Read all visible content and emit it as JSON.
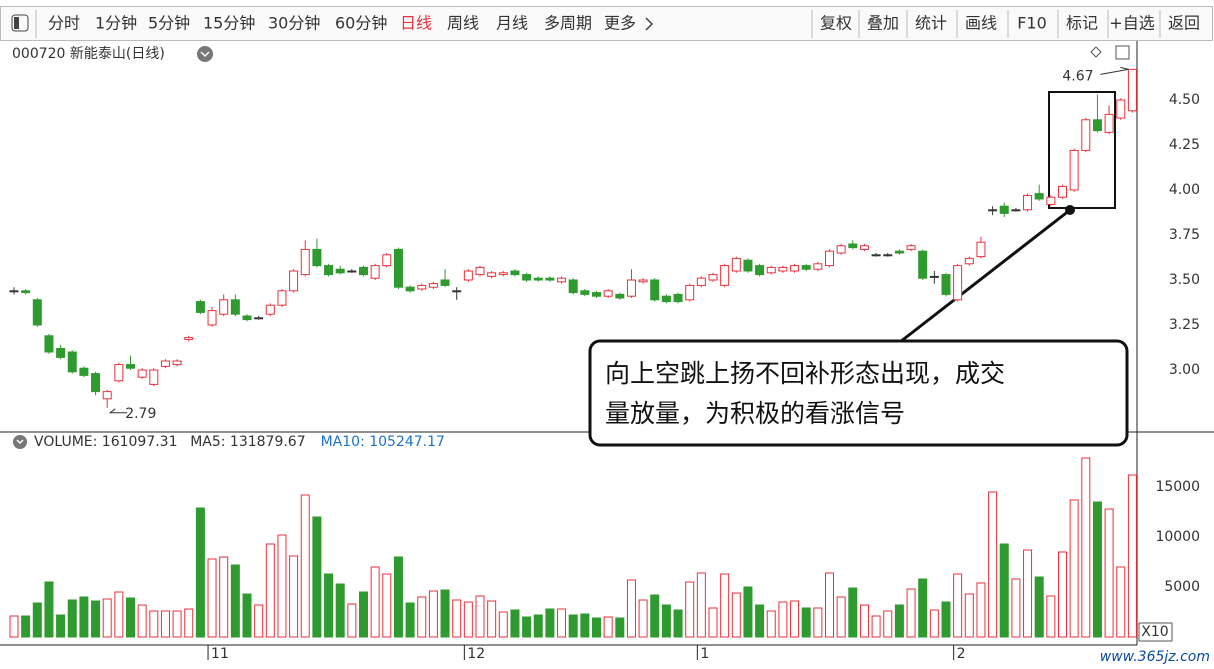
{
  "toolbar": {
    "left": [
      "分时",
      "1分钟",
      "5分钟",
      "15分钟",
      "30分钟",
      "60分钟",
      "日线",
      "周线",
      "月线",
      "多周期",
      "更多"
    ],
    "active": "日线",
    "right": [
      "复权",
      "叠加",
      "统计",
      "画线",
      "F10",
      "标记",
      "+自选",
      "返回"
    ],
    "zoom": "X10",
    "watermark": "www.365jz.com"
  },
  "chart_data": [
    {
      "type": "candlestick",
      "title": "000720 新能泰山(日线)",
      "up_color": "#e8323c",
      "down_color": "#2f9a2f",
      "flat_color": "#333333",
      "ylim": [
        2.7,
        4.8
      ],
      "yticks": [
        {
          "value": 3,
          "label": "3.00"
        },
        {
          "value": 3.25,
          "label": "3.25"
        },
        {
          "value": 3.5,
          "label": "3.50"
        },
        {
          "value": 3.75,
          "label": "3.75"
        },
        {
          "value": 4,
          "label": "4.00"
        },
        {
          "value": 4.25,
          "label": "4.25"
        },
        {
          "value": 4.5,
          "label": "4.50"
        }
      ],
      "grid": true,
      "annotations": [
        "向上空跳上扬不回补形态出现，成交",
        "量放量，为积极的看涨信号"
      ],
      "categories": [
        null,
        null,
        null,
        null,
        null,
        null,
        null,
        null,
        null,
        null,
        null,
        null,
        null,
        null,
        null,
        null,
        null,
        "11",
        null,
        null,
        null,
        null,
        null,
        null,
        null,
        null,
        null,
        null,
        null,
        null,
        null,
        null,
        null,
        null,
        null,
        null,
        null,
        null,
        null,
        "12",
        null,
        null,
        null,
        null,
        null,
        null,
        null,
        null,
        null,
        null,
        null,
        null,
        null,
        null,
        null,
        null,
        null,
        null,
        null,
        "1",
        null,
        null,
        null,
        null,
        null,
        null,
        null,
        null,
        null,
        null,
        null,
        null,
        null,
        null,
        null,
        null,
        null,
        null,
        null,
        null,
        null,
        "2",
        null,
        null,
        null,
        null,
        null,
        null,
        null,
        null,
        null,
        null,
        null,
        null,
        null,
        null,
        null
      ],
      "open": [
        3.44,
        3.44,
        3.39,
        3.19,
        3.12,
        3.1,
        3.01,
        2.98,
        2.84,
        2.94,
        3.03,
        2.96,
        2.92,
        3.02,
        3.03,
        3.17,
        3.38,
        3.25,
        3.31,
        3.39,
        3.3,
        3.29,
        3.31,
        3.36,
        3.44,
        3.53,
        3.67,
        3.58,
        3.56,
        3.55,
        3.57,
        3.51,
        3.58,
        3.67,
        3.46,
        3.45,
        3.46,
        3.5,
        3.44,
        3.5,
        3.53,
        3.52,
        3.53,
        3.55,
        3.53,
        3.51,
        3.51,
        3.49,
        3.5,
        3.44,
        3.43,
        3.41,
        3.42,
        3.41,
        3.49,
        3.5,
        3.41,
        3.42,
        3.39,
        3.47,
        3.5,
        3.47,
        3.55,
        3.61,
        3.58,
        3.54,
        3.55,
        3.55,
        3.58,
        3.56,
        3.58,
        3.65,
        3.7,
        3.67,
        3.64,
        3.64,
        3.66,
        3.67,
        3.66,
        3.52,
        3.53,
        3.39,
        3.59,
        3.63,
        3.89,
        3.91,
        3.89,
        3.89,
        3.98,
        3.92,
        3.96,
        4.0,
        4.22,
        4.39,
        4.32,
        4.4,
        4.44
      ],
      "high": [
        3.46,
        3.45,
        3.4,
        3.2,
        3.14,
        3.11,
        3.02,
        2.99,
        2.89,
        3.04,
        3.08,
        3.01,
        3.01,
        3.06,
        3.06,
        3.19,
        3.39,
        3.35,
        3.42,
        3.42,
        3.31,
        3.3,
        3.37,
        3.45,
        3.56,
        3.72,
        3.73,
        3.59,
        3.58,
        3.56,
        3.58,
        3.59,
        3.65,
        3.68,
        3.47,
        3.48,
        3.49,
        3.56,
        3.46,
        3.56,
        3.58,
        3.55,
        3.55,
        3.56,
        3.54,
        3.52,
        3.52,
        3.52,
        3.51,
        3.45,
        3.44,
        3.45,
        3.43,
        3.56,
        3.51,
        3.51,
        3.42,
        3.43,
        3.48,
        3.52,
        3.54,
        3.59,
        3.63,
        3.62,
        3.59,
        3.58,
        3.58,
        3.59,
        3.59,
        3.6,
        3.67,
        3.7,
        3.72,
        3.7,
        3.65,
        3.65,
        3.67,
        3.7,
        3.67,
        3.55,
        3.54,
        3.59,
        3.63,
        3.74,
        3.91,
        3.93,
        3.9,
        3.98,
        4.03,
        3.97,
        4.03,
        4.23,
        4.4,
        4.53,
        4.47,
        4.51,
        4.67
      ],
      "low": [
        3.42,
        3.42,
        3.24,
        3.09,
        3.06,
        2.98,
        2.96,
        2.86,
        2.79,
        2.93,
        3.0,
        2.95,
        2.91,
        3.01,
        3.02,
        3.16,
        3.31,
        3.24,
        3.3,
        3.3,
        3.27,
        3.28,
        3.3,
        3.35,
        3.43,
        3.52,
        3.57,
        3.52,
        3.53,
        3.54,
        3.52,
        3.5,
        3.57,
        3.45,
        3.43,
        3.44,
        3.45,
        3.46,
        3.39,
        3.49,
        3.52,
        3.51,
        3.52,
        3.52,
        3.49,
        3.49,
        3.49,
        3.48,
        3.42,
        3.41,
        3.4,
        3.4,
        3.39,
        3.4,
        3.48,
        3.38,
        3.37,
        3.37,
        3.38,
        3.46,
        3.49,
        3.46,
        3.54,
        3.54,
        3.52,
        3.53,
        3.54,
        3.54,
        3.55,
        3.55,
        3.57,
        3.64,
        3.67,
        3.66,
        3.63,
        3.63,
        3.64,
        3.66,
        3.5,
        3.48,
        3.41,
        3.38,
        3.58,
        3.62,
        3.86,
        3.85,
        3.88,
        3.88,
        3.94,
        3.91,
        3.95,
        3.99,
        4.21,
        4.32,
        4.31,
        4.39,
        4.43
      ],
      "close": [
        3.44,
        3.43,
        3.25,
        3.1,
        3.07,
        2.99,
        2.97,
        2.88,
        2.88,
        3.03,
        3.01,
        3.0,
        3.0,
        3.05,
        3.05,
        3.18,
        3.32,
        3.33,
        3.39,
        3.31,
        3.28,
        3.29,
        3.36,
        3.44,
        3.55,
        3.67,
        3.58,
        3.53,
        3.54,
        3.55,
        3.53,
        3.58,
        3.64,
        3.46,
        3.44,
        3.47,
        3.48,
        3.47,
        3.44,
        3.55,
        3.57,
        3.54,
        3.54,
        3.53,
        3.5,
        3.5,
        3.5,
        3.51,
        3.43,
        3.42,
        3.41,
        3.44,
        3.4,
        3.5,
        3.5,
        3.39,
        3.38,
        3.38,
        3.47,
        3.51,
        3.53,
        3.58,
        3.62,
        3.55,
        3.53,
        3.57,
        3.57,
        3.58,
        3.56,
        3.59,
        3.66,
        3.69,
        3.68,
        3.69,
        3.64,
        3.64,
        3.65,
        3.69,
        3.51,
        3.52,
        3.42,
        3.58,
        3.62,
        3.71,
        3.89,
        3.87,
        3.89,
        3.97,
        3.95,
        3.96,
        4.02,
        4.22,
        4.39,
        4.33,
        4.42,
        4.5,
        4.67
      ]
    },
    {
      "type": "bar",
      "header": [
        "VOLUME: 161097.31",
        "MA5: 131879.67",
        "MA10: 105247.17"
      ],
      "header_colors": [
        "#333333",
        "#333333",
        "#1e73c8"
      ],
      "ylim": [
        0,
        18000
      ],
      "yticks": [
        5000,
        10000,
        15000
      ],
      "grid": true,
      "values": [
        2100,
        2100,
        3400,
        5500,
        2200,
        3700,
        4000,
        3600,
        3800,
        4500,
        3900,
        3200,
        2600,
        2600,
        2600,
        2800,
        12900,
        7800,
        8000,
        7200,
        4300,
        3200,
        9300,
        10200,
        8100,
        14200,
        12000,
        6300,
        5300,
        3300,
        4500,
        7000,
        6300,
        8000,
        3400,
        4000,
        4600,
        4700,
        3700,
        3500,
        4100,
        3600,
        2500,
        2700,
        2000,
        2200,
        2800,
        2800,
        2200,
        2300,
        1900,
        2000,
        1900,
        5700,
        3700,
        4200,
        3200,
        2700,
        5500,
        6400,
        2900,
        6300,
        4400,
        5000,
        3200,
        2600,
        3500,
        3600,
        2900,
        2900,
        6400,
        4000,
        4900,
        3200,
        2100,
        2600,
        3200,
        4800,
        5800,
        2700,
        3500,
        6300,
        4300,
        5400,
        14500,
        9300,
        5800,
        8700,
        6000,
        4100,
        8500,
        13700,
        17900,
        13500,
        12800,
        7000,
        16200
      ]
    }
  ]
}
